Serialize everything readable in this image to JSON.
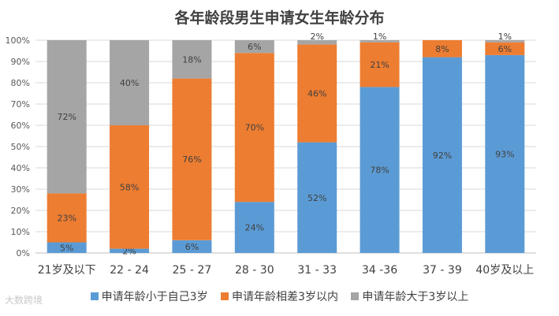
{
  "chart_data": {
    "type": "bar",
    "stacked": true,
    "title": "各年龄段男生申请女生年龄分布",
    "categories": [
      "21岁及以下",
      "22 - 24",
      "25 - 27",
      "28 - 30",
      "31 - 33",
      "34 -36",
      "37 - 39",
      "40岁及以上"
    ],
    "series": [
      {
        "name": "申请年龄小于自己3岁",
        "color": "#5b9bd5",
        "values": [
          5,
          2,
          6,
          24,
          52,
          78,
          92,
          93
        ]
      },
      {
        "name": "申请年龄相差3岁以内",
        "color": "#ed7d31",
        "values": [
          23,
          58,
          76,
          70,
          46,
          21,
          8,
          6
        ]
      },
      {
        "name": "申请年龄大于3岁以上",
        "color": "#a5a5a5",
        "values": [
          72,
          40,
          18,
          6,
          2,
          1,
          0,
          1
        ]
      }
    ],
    "data_labels": [
      [
        "5%",
        "2%",
        "6%",
        "24%",
        "52%",
        "78%",
        "92%",
        "93%"
      ],
      [
        "23%",
        "58%",
        "76%",
        "70%",
        "46%",
        "21%",
        "8%",
        "6%"
      ],
      [
        "72%",
        "40%",
        "18%",
        "6%",
        "2%",
        "1%",
        "",
        "1%"
      ]
    ],
    "ylim": [
      0,
      100
    ],
    "yticks": [
      "0%",
      "10%",
      "20%",
      "30%",
      "40%",
      "50%",
      "60%",
      "70%",
      "80%",
      "90%",
      "100%"
    ],
    "grid": true,
    "legend_position": "bottom"
  },
  "watermark": "大数跨境"
}
